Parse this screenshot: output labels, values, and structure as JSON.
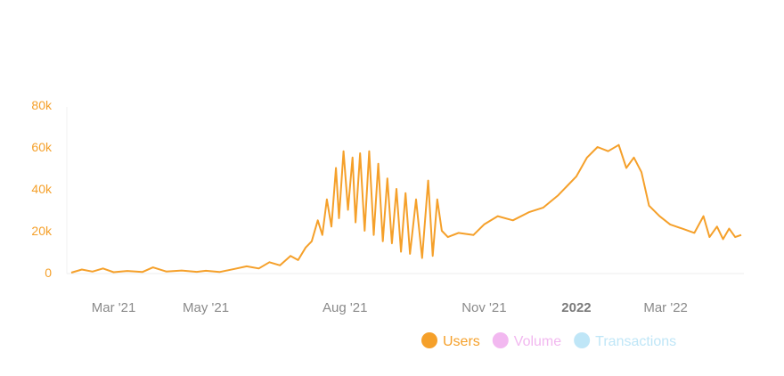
{
  "chart_data": {
    "type": "line",
    "title": "",
    "xlabel": "",
    "ylabel": "",
    "ylim": [
      0,
      80000
    ],
    "y_ticks": [
      {
        "value": 0,
        "label": "0"
      },
      {
        "value": 20000,
        "label": "20k"
      },
      {
        "value": 40000,
        "label": "40k"
      },
      {
        "value": 60000,
        "label": "60k"
      },
      {
        "value": 80000,
        "label": "80k"
      }
    ],
    "x_range": [
      "2021-02-01",
      "2022-04-20"
    ],
    "x_ticks": [
      {
        "date": "2021-03-01",
        "label": "Mar '21",
        "bold": false
      },
      {
        "date": "2021-05-01",
        "label": "May '21",
        "bold": false
      },
      {
        "date": "2021-08-01",
        "label": "Aug '21",
        "bold": false
      },
      {
        "date": "2021-11-01",
        "label": "Nov '21",
        "bold": false
      },
      {
        "date": "2022-01-01",
        "label": "2022",
        "bold": true
      },
      {
        "date": "2022-03-01",
        "label": "Mar '22",
        "bold": false
      }
    ],
    "grid": false,
    "legend_position": "bottom-right",
    "series": [
      {
        "name": "Users",
        "color": "#f5a02a",
        "visible": true,
        "points": [
          [
            "2021-02-01",
            0
          ],
          [
            "2021-02-08",
            1500
          ],
          [
            "2021-02-15",
            500
          ],
          [
            "2021-02-22",
            2000
          ],
          [
            "2021-03-01",
            200
          ],
          [
            "2021-03-10",
            800
          ],
          [
            "2021-03-20",
            300
          ],
          [
            "2021-03-27",
            2500
          ],
          [
            "2021-04-05",
            500
          ],
          [
            "2021-04-15",
            1000
          ],
          [
            "2021-04-25",
            400
          ],
          [
            "2021-05-01",
            900
          ],
          [
            "2021-05-10",
            300
          ],
          [
            "2021-05-20",
            1800
          ],
          [
            "2021-05-28",
            3000
          ],
          [
            "2021-06-05",
            2000
          ],
          [
            "2021-06-12",
            5000
          ],
          [
            "2021-06-19",
            3500
          ],
          [
            "2021-06-26",
            8000
          ],
          [
            "2021-07-01",
            6000
          ],
          [
            "2021-07-06",
            12000
          ],
          [
            "2021-07-10",
            15000
          ],
          [
            "2021-07-14",
            25000
          ],
          [
            "2021-07-17",
            18000
          ],
          [
            "2021-07-20",
            35000
          ],
          [
            "2021-07-23",
            22000
          ],
          [
            "2021-07-26",
            50000
          ],
          [
            "2021-07-28",
            26000
          ],
          [
            "2021-07-31",
            58000
          ],
          [
            "2021-08-03",
            30000
          ],
          [
            "2021-08-06",
            55000
          ],
          [
            "2021-08-08",
            24000
          ],
          [
            "2021-08-11",
            57000
          ],
          [
            "2021-08-14",
            20000
          ],
          [
            "2021-08-17",
            58000
          ],
          [
            "2021-08-20",
            18000
          ],
          [
            "2021-08-23",
            52000
          ],
          [
            "2021-08-26",
            15000
          ],
          [
            "2021-08-29",
            45000
          ],
          [
            "2021-09-01",
            14000
          ],
          [
            "2021-09-04",
            40000
          ],
          [
            "2021-09-07",
            10000
          ],
          [
            "2021-09-10",
            38000
          ],
          [
            "2021-09-13",
            9000
          ],
          [
            "2021-09-17",
            35000
          ],
          [
            "2021-09-21",
            7000
          ],
          [
            "2021-09-25",
            44000
          ],
          [
            "2021-09-28",
            8000
          ],
          [
            "2021-10-01",
            35000
          ],
          [
            "2021-10-04",
            20000
          ],
          [
            "2021-10-08",
            17000
          ],
          [
            "2021-10-15",
            19000
          ],
          [
            "2021-10-25",
            18000
          ],
          [
            "2021-11-01",
            23000
          ],
          [
            "2021-11-10",
            27000
          ],
          [
            "2021-11-20",
            25000
          ],
          [
            "2021-12-01",
            29000
          ],
          [
            "2021-12-10",
            31000
          ],
          [
            "2021-12-20",
            37000
          ],
          [
            "2022-01-01",
            46000
          ],
          [
            "2022-01-08",
            55000
          ],
          [
            "2022-01-15",
            60000
          ],
          [
            "2022-01-22",
            58000
          ],
          [
            "2022-01-29",
            61000
          ],
          [
            "2022-02-03",
            50000
          ],
          [
            "2022-02-08",
            55000
          ],
          [
            "2022-02-13",
            48000
          ],
          [
            "2022-02-18",
            32000
          ],
          [
            "2022-02-25",
            27000
          ],
          [
            "2022-03-04",
            23000
          ],
          [
            "2022-03-12",
            21000
          ],
          [
            "2022-03-20",
            19000
          ],
          [
            "2022-03-26",
            27000
          ],
          [
            "2022-03-30",
            17000
          ],
          [
            "2022-04-04",
            22000
          ],
          [
            "2022-04-08",
            16000
          ],
          [
            "2022-04-12",
            21000
          ],
          [
            "2022-04-16",
            17000
          ],
          [
            "2022-04-20",
            18000
          ]
        ]
      },
      {
        "name": "Volume",
        "color": "#f2b8f0",
        "visible": false,
        "points": []
      },
      {
        "name": "Transactions",
        "color": "#bfe6f7",
        "visible": false,
        "points": []
      }
    ]
  }
}
